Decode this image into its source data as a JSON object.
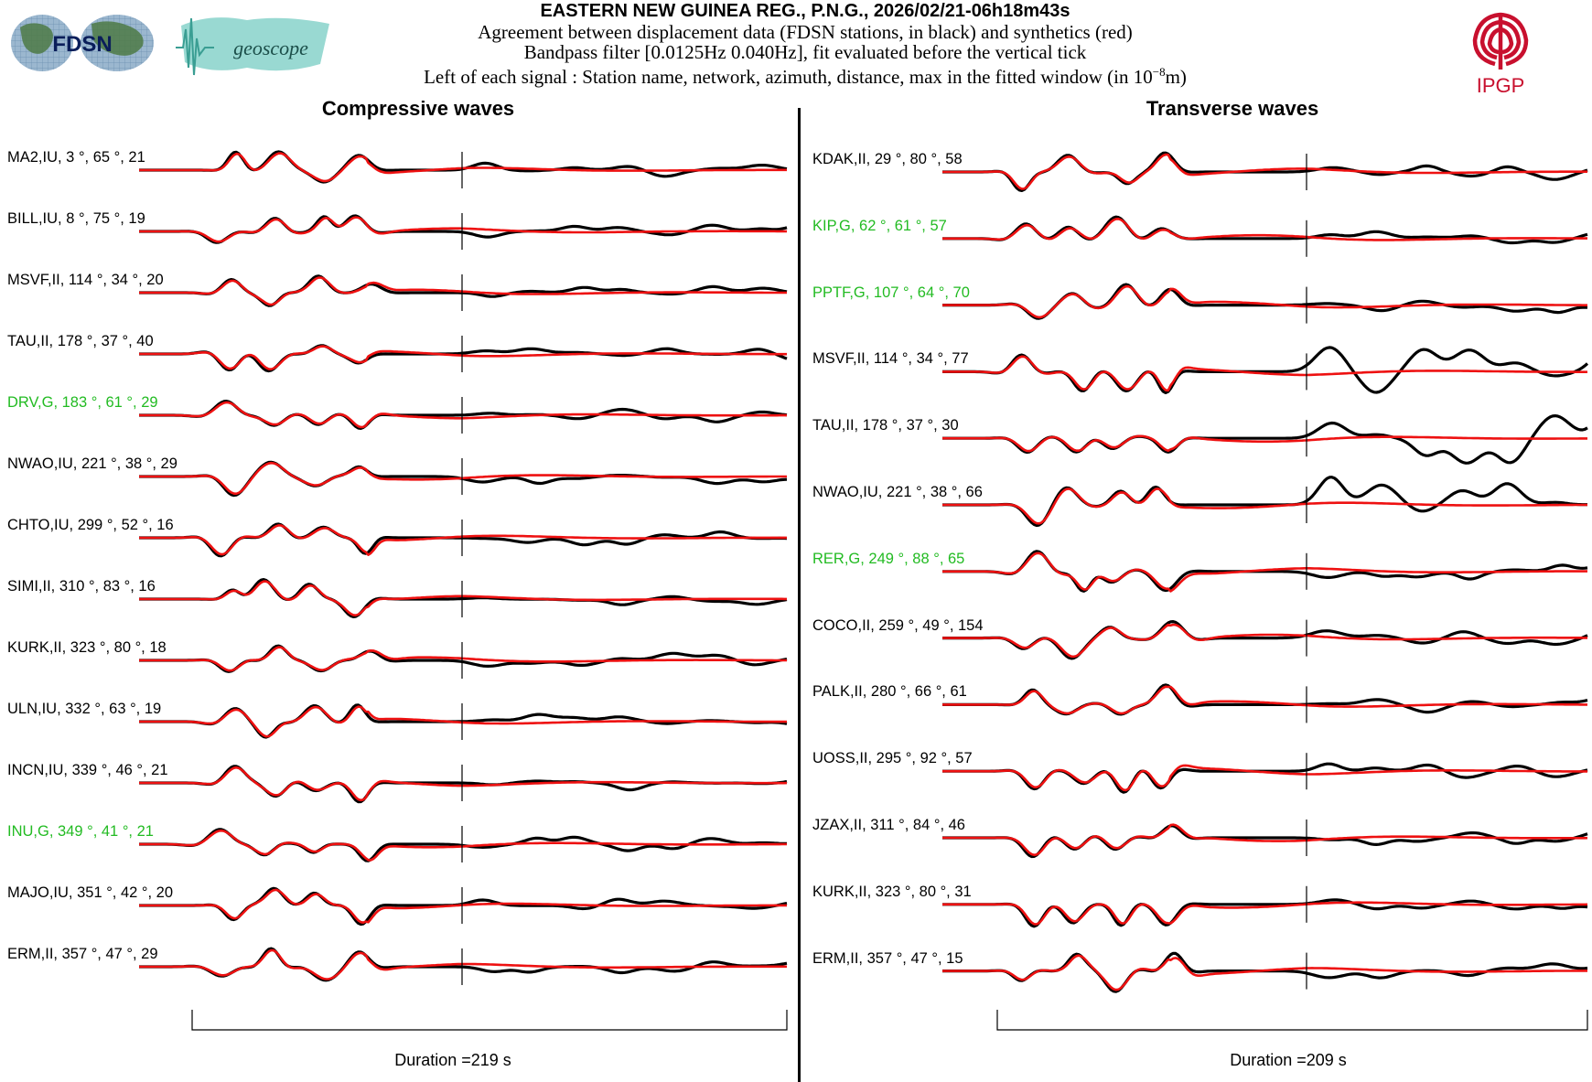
{
  "header": {
    "title": "EASTERN NEW GUINEA REG., P.N.G., 2026/02/21-06h18m43s",
    "line1": "Agreement between displacement data (FDSN stations, in black) and synthetics (red)",
    "line2": "Bandpass filter [0.0125Hz 0.040Hz], fit evaluated before the vertical tick",
    "line3_before": "Left of each signal : Station name, network, azimuth, distance, max in the fitted window (in 10",
    "line3_exp": "−8",
    "line3_after": "m)"
  },
  "logos": {
    "fdsn": "FDSN",
    "geoscope": "geoscope",
    "ipgp": "IPGP"
  },
  "colors": {
    "data": "#000000",
    "synthetic": "#ee1111",
    "green_label": "#22bb22",
    "ipgp_red": "#c8102e"
  },
  "chart_data": [
    {
      "type": "line",
      "title": "Compressive waves",
      "duration_label": "Duration =219 s",
      "duration_s": 219,
      "series": [
        {
          "name": "data"
        },
        {
          "name": "synthetics"
        }
      ],
      "stations": [
        {
          "label": "MA2,IU, 3  °, 65 °, 21",
          "name": "MA2",
          "net": "IU",
          "az": 3,
          "dist": 65,
          "max": 21,
          "green": false
        },
        {
          "label": "BILL,IU, 8  °, 75 °, 19",
          "name": "BILL",
          "net": "IU",
          "az": 8,
          "dist": 75,
          "max": 19,
          "green": false
        },
        {
          "label": "MSVF,II, 114  °, 34 °, 20",
          "name": "MSVF",
          "net": "II",
          "az": 114,
          "dist": 34,
          "max": 20,
          "green": false
        },
        {
          "label": "TAU,II, 178  °, 37 °, 40",
          "name": "TAU",
          "net": "II",
          "az": 178,
          "dist": 37,
          "max": 40,
          "green": false
        },
        {
          "label": "DRV,G, 183  °, 61 °, 29",
          "name": "DRV",
          "net": "G",
          "az": 183,
          "dist": 61,
          "max": 29,
          "green": true
        },
        {
          "label": "NWAO,IU, 221  °, 38 °, 29",
          "name": "NWAO",
          "net": "IU",
          "az": 221,
          "dist": 38,
          "max": 29,
          "green": false
        },
        {
          "label": "CHTO,IU, 299  °, 52 °, 16",
          "name": "CHTO",
          "net": "IU",
          "az": 299,
          "dist": 52,
          "max": 16,
          "green": false
        },
        {
          "label": "SIMI,II, 310  °, 83 °, 16",
          "name": "SIMI",
          "net": "II",
          "az": 310,
          "dist": 83,
          "max": 16,
          "green": false
        },
        {
          "label": "KURK,II, 323  °, 80 °, 18",
          "name": "KURK",
          "net": "II",
          "az": 323,
          "dist": 80,
          "max": 18,
          "green": false
        },
        {
          "label": "ULN,IU, 332  °, 63 °, 19",
          "name": "ULN",
          "net": "IU",
          "az": 332,
          "dist": 63,
          "max": 19,
          "green": false
        },
        {
          "label": "INCN,IU, 339  °, 46 °, 21",
          "name": "INCN",
          "net": "IU",
          "az": 339,
          "dist": 46,
          "max": 21,
          "green": false
        },
        {
          "label": "INU,G, 349  °, 41 °, 21",
          "name": "INU",
          "net": "G",
          "az": 349,
          "dist": 41,
          "max": 21,
          "green": true
        },
        {
          "label": "MAJO,IU, 351  °, 42 °, 20",
          "name": "MAJO",
          "net": "IU",
          "az": 351,
          "dist": 42,
          "max": 20,
          "green": false
        },
        {
          "label": "ERM,II, 357  °, 47 °, 29",
          "name": "ERM",
          "net": "II",
          "az": 357,
          "dist": 47,
          "max": 29,
          "green": false
        }
      ]
    },
    {
      "type": "line",
      "title": "Transverse waves",
      "duration_label": "Duration =209 s",
      "duration_s": 209,
      "series": [
        {
          "name": "data"
        },
        {
          "name": "synthetics"
        }
      ],
      "stations": [
        {
          "label": "KDAK,II, 29  °, 80 °, 58",
          "name": "KDAK",
          "net": "II",
          "az": 29,
          "dist": 80,
          "max": 58,
          "green": false
        },
        {
          "label": "KIP,G, 62  °, 61 °, 57",
          "name": "KIP",
          "net": "G",
          "az": 62,
          "dist": 61,
          "max": 57,
          "green": true
        },
        {
          "label": "PPTF,G, 107  °, 64 °, 70",
          "name": "PPTF",
          "net": "G",
          "az": 107,
          "dist": 64,
          "max": 70,
          "green": true
        },
        {
          "label": "MSVF,II, 114  °, 34 °, 77",
          "name": "MSVF",
          "net": "II",
          "az": 114,
          "dist": 34,
          "max": 77,
          "green": false
        },
        {
          "label": "TAU,II, 178  °, 37 °, 30",
          "name": "TAU",
          "net": "II",
          "az": 178,
          "dist": 37,
          "max": 30,
          "green": false
        },
        {
          "label": "NWAO,IU, 221  °, 38 °, 66",
          "name": "NWAO",
          "net": "IU",
          "az": 221,
          "dist": 38,
          "max": 66,
          "green": false
        },
        {
          "label": "RER,G, 249  °, 88 °, 65",
          "name": "RER",
          "net": "G",
          "az": 249,
          "dist": 88,
          "max": 65,
          "green": true
        },
        {
          "label": "COCO,II, 259  °, 49 °, 154",
          "name": "COCO",
          "net": "II",
          "az": 259,
          "dist": 49,
          "max": 154,
          "green": false
        },
        {
          "label": "PALK,II, 280  °, 66 °, 61",
          "name": "PALK",
          "net": "II",
          "az": 280,
          "dist": 66,
          "max": 61,
          "green": false
        },
        {
          "label": "UOSS,II, 295  °, 92 °, 57",
          "name": "UOSS",
          "net": "II",
          "az": 295,
          "dist": 92,
          "max": 57,
          "green": false
        },
        {
          "label": "JZAX,II, 311  °, 84 °, 46",
          "name": "JZAX",
          "net": "II",
          "az": 311,
          "dist": 84,
          "max": 46,
          "green": false
        },
        {
          "label": "KURK,II, 323  °, 80 °, 31",
          "name": "KURK",
          "net": "II",
          "az": 323,
          "dist": 80,
          "max": 31,
          "green": false
        },
        {
          "label": "ERM,II, 357  °, 47 °, 15",
          "name": "ERM",
          "net": "II",
          "az": 357,
          "dist": 47,
          "max": 15,
          "green": false
        }
      ]
    }
  ]
}
